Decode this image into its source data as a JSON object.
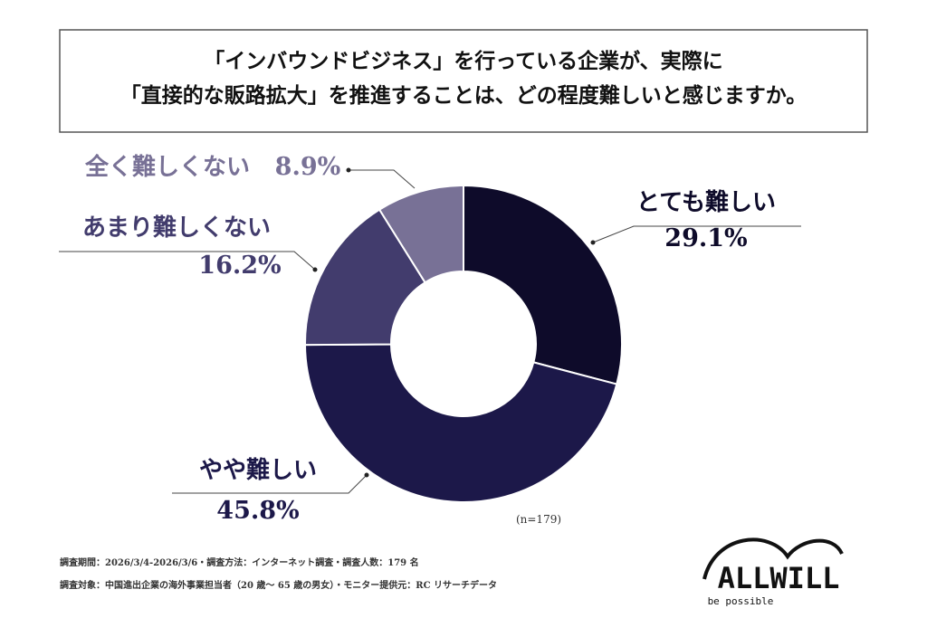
{
  "chart_data": {
    "type": "pie",
    "donut": true,
    "title": [
      "「インバウンドビジネス」を行っている企業が、実際に",
      "「直接的な販路拡大」を推進することは、どの程度難しいと感じますか。"
    ],
    "categories": [
      "とても難しい",
      "やや難しい",
      "あまり難しくない",
      "全く難しくない"
    ],
    "values": [
      29.1,
      45.8,
      16.2,
      8.9
    ],
    "value_labels": [
      "29.1%",
      "45.8%",
      "16.2%",
      "8.9%"
    ],
    "colors": [
      "#0e0b2a",
      "#1c1849",
      "#423c6d",
      "#787196"
    ],
    "note": "(n=179)"
  },
  "footnotes": [
    "調査期間：2026/3/4-2026/3/6・調査方法：インターネット調査・調査人数：179 名",
    "調査対象：中国進出企業の海外事業担当者（20 歳～ 65 歳の男女）・モニター提供元：RC リサーチデータ"
  ],
  "logo": {
    "name": "ALLWILL",
    "tagline": "be possible"
  }
}
